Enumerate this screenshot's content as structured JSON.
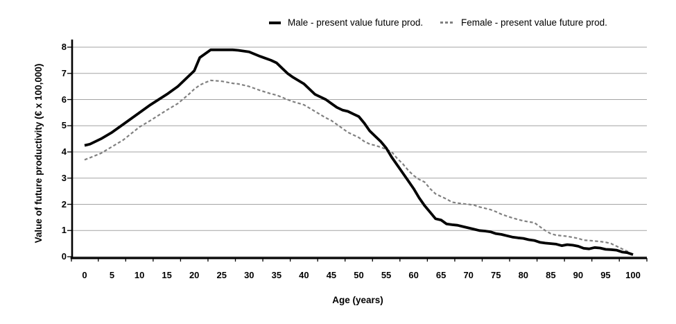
{
  "chart_data": {
    "type": "line",
    "title": "",
    "xlabel": "Age (years)",
    "ylabel": "Value of future productivity (€ x 100,000)",
    "xlim": [
      0,
      100
    ],
    "ylim": [
      0,
      8
    ],
    "x_ticks": [
      0,
      5,
      10,
      15,
      20,
      25,
      30,
      35,
      40,
      45,
      50,
      55,
      60,
      65,
      70,
      75,
      80,
      85,
      90,
      95,
      100
    ],
    "y_ticks": [
      0,
      1,
      2,
      3,
      4,
      5,
      6,
      7,
      8
    ],
    "grid": "horizontal",
    "legend_position": "top",
    "colors": {
      "male_line": "#000000",
      "female_line": "#808080",
      "gridline": "#a3a3a3",
      "axis": "#000000"
    },
    "series": [
      {
        "name": "Female - present value future prod.",
        "style": "dashed",
        "color": "#808080",
        "width": 2.2,
        "points": [
          [
            0,
            3.7
          ],
          [
            1,
            3.78
          ],
          [
            3,
            3.95
          ],
          [
            5,
            4.2
          ],
          [
            7,
            4.45
          ],
          [
            10,
            4.95
          ],
          [
            12,
            5.2
          ],
          [
            15,
            5.6
          ],
          [
            17,
            5.85
          ],
          [
            19,
            6.2
          ],
          [
            20,
            6.4
          ],
          [
            21,
            6.55
          ],
          [
            22,
            6.65
          ],
          [
            23,
            6.73
          ],
          [
            25,
            6.7
          ],
          [
            27,
            6.62
          ],
          [
            28,
            6.6
          ],
          [
            30,
            6.5
          ],
          [
            32,
            6.35
          ],
          [
            34,
            6.22
          ],
          [
            35,
            6.17
          ],
          [
            37,
            6.0
          ],
          [
            38,
            5.92
          ],
          [
            40,
            5.8
          ],
          [
            42,
            5.55
          ],
          [
            44,
            5.3
          ],
          [
            45,
            5.2
          ],
          [
            46,
            5.05
          ],
          [
            47,
            4.9
          ],
          [
            48,
            4.75
          ],
          [
            49,
            4.65
          ],
          [
            50,
            4.55
          ],
          [
            51,
            4.4
          ],
          [
            52,
            4.3
          ],
          [
            53,
            4.25
          ],
          [
            54,
            4.18
          ],
          [
            55,
            4.1
          ],
          [
            56,
            4.0
          ],
          [
            57,
            3.75
          ],
          [
            58,
            3.55
          ],
          [
            59,
            3.3
          ],
          [
            60,
            3.1
          ],
          [
            61,
            2.95
          ],
          [
            62,
            2.85
          ],
          [
            63,
            2.6
          ],
          [
            64,
            2.4
          ],
          [
            65,
            2.3
          ],
          [
            66,
            2.2
          ],
          [
            67,
            2.08
          ],
          [
            68,
            2.05
          ],
          [
            69,
            2.02
          ],
          [
            70,
            2.0
          ],
          [
            71,
            1.97
          ],
          [
            72,
            1.9
          ],
          [
            73,
            1.85
          ],
          [
            74,
            1.8
          ],
          [
            75,
            1.72
          ],
          [
            76,
            1.62
          ],
          [
            77,
            1.55
          ],
          [
            78,
            1.48
          ],
          [
            79,
            1.42
          ],
          [
            80,
            1.37
          ],
          [
            81,
            1.33
          ],
          [
            82,
            1.3
          ],
          [
            83,
            1.15
          ],
          [
            84,
            1.0
          ],
          [
            85,
            0.88
          ],
          [
            86,
            0.82
          ],
          [
            87,
            0.8
          ],
          [
            88,
            0.78
          ],
          [
            89,
            0.74
          ],
          [
            90,
            0.7
          ],
          [
            91,
            0.63
          ],
          [
            92,
            0.62
          ],
          [
            93,
            0.6
          ],
          [
            94,
            0.58
          ],
          [
            95,
            0.55
          ],
          [
            96,
            0.5
          ],
          [
            97,
            0.4
          ],
          [
            98,
            0.3
          ],
          [
            99,
            0.2
          ],
          [
            100,
            0.08
          ]
        ]
      },
      {
        "name": "Male - present value future prod.",
        "style": "solid",
        "color": "#000000",
        "width": 3.8,
        "points": [
          [
            0,
            4.25
          ],
          [
            1,
            4.3
          ],
          [
            3,
            4.5
          ],
          [
            5,
            4.75
          ],
          [
            7,
            5.05
          ],
          [
            10,
            5.5
          ],
          [
            12,
            5.8
          ],
          [
            15,
            6.2
          ],
          [
            17,
            6.5
          ],
          [
            19,
            6.9
          ],
          [
            20,
            7.1
          ],
          [
            21,
            7.6
          ],
          [
            22,
            7.75
          ],
          [
            23,
            7.9
          ],
          [
            25,
            7.9
          ],
          [
            27,
            7.9
          ],
          [
            28,
            7.88
          ],
          [
            30,
            7.82
          ],
          [
            32,
            7.65
          ],
          [
            34,
            7.5
          ],
          [
            35,
            7.4
          ],
          [
            36,
            7.2
          ],
          [
            37,
            7.0
          ],
          [
            38,
            6.85
          ],
          [
            40,
            6.6
          ],
          [
            42,
            6.2
          ],
          [
            43,
            6.1
          ],
          [
            44,
            6.0
          ],
          [
            45,
            5.85
          ],
          [
            46,
            5.7
          ],
          [
            47,
            5.6
          ],
          [
            48,
            5.55
          ],
          [
            49,
            5.45
          ],
          [
            50,
            5.35
          ],
          [
            51,
            5.1
          ],
          [
            52,
            4.8
          ],
          [
            53,
            4.6
          ],
          [
            54,
            4.4
          ],
          [
            55,
            4.15
          ],
          [
            56,
            3.8
          ],
          [
            57,
            3.5
          ],
          [
            58,
            3.2
          ],
          [
            59,
            2.9
          ],
          [
            60,
            2.6
          ],
          [
            61,
            2.25
          ],
          [
            62,
            1.95
          ],
          [
            63,
            1.7
          ],
          [
            64,
            1.45
          ],
          [
            65,
            1.4
          ],
          [
            66,
            1.25
          ],
          [
            67,
            1.22
          ],
          [
            68,
            1.2
          ],
          [
            69,
            1.15
          ],
          [
            70,
            1.1
          ],
          [
            71,
            1.05
          ],
          [
            72,
            1.0
          ],
          [
            73,
            0.98
          ],
          [
            74,
            0.95
          ],
          [
            75,
            0.88
          ],
          [
            76,
            0.85
          ],
          [
            77,
            0.8
          ],
          [
            78,
            0.75
          ],
          [
            79,
            0.72
          ],
          [
            80,
            0.7
          ],
          [
            81,
            0.65
          ],
          [
            82,
            0.62
          ],
          [
            83,
            0.55
          ],
          [
            84,
            0.52
          ],
          [
            85,
            0.5
          ],
          [
            86,
            0.48
          ],
          [
            87,
            0.42
          ],
          [
            88,
            0.46
          ],
          [
            89,
            0.44
          ],
          [
            90,
            0.4
          ],
          [
            91,
            0.32
          ],
          [
            92,
            0.3
          ],
          [
            93,
            0.35
          ],
          [
            94,
            0.33
          ],
          [
            95,
            0.28
          ],
          [
            96,
            0.27
          ],
          [
            97,
            0.25
          ],
          [
            98,
            0.18
          ],
          [
            99,
            0.15
          ],
          [
            100,
            0.08
          ]
        ]
      }
    ]
  }
}
